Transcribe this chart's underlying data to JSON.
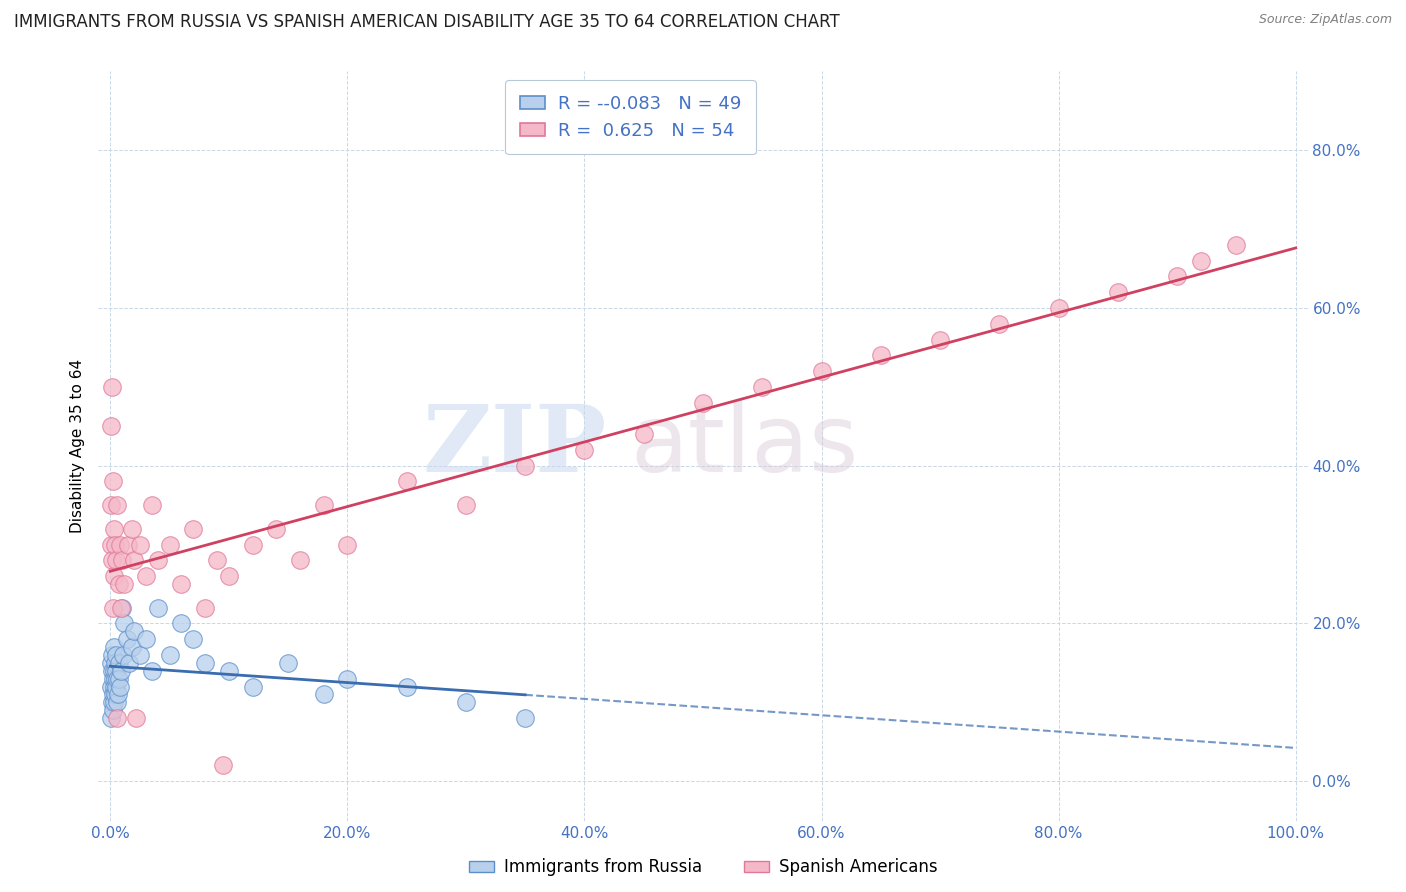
{
  "title": "IMMIGRANTS FROM RUSSIA VS SPANISH AMERICAN DISABILITY AGE 35 TO 64 CORRELATION CHART",
  "source": "Source: ZipAtlas.com",
  "ylabel": "Disability Age 35 to 64",
  "watermark_zip": "ZIP",
  "watermark_atlas": "atlas",
  "legend_r1": "-0.083",
  "legend_n1": "49",
  "legend_r2": "0.625",
  "legend_n2": "54",
  "blue_scatter_face": "#b8d0eb",
  "blue_scatter_edge": "#5b8fcc",
  "pink_scatter_face": "#f5b8c8",
  "pink_scatter_edge": "#e07898",
  "blue_line_color": "#3a6cb0",
  "pink_line_color": "#d04060",
  "grid_color": "#c8d8e8",
  "background": "#ffffff",
  "tick_color": "#4472c4",
  "title_color": "#222222",
  "russia_x": [
    0.05,
    0.08,
    0.1,
    0.12,
    0.15,
    0.18,
    0.2,
    0.22,
    0.25,
    0.28,
    0.3,
    0.32,
    0.35,
    0.38,
    0.4,
    0.42,
    0.45,
    0.48,
    0.5,
    0.55,
    0.6,
    0.65,
    0.7,
    0.75,
    0.8,
    0.9,
    1.0,
    1.1,
    1.2,
    1.4,
    1.6,
    1.8,
    2.0,
    2.5,
    3.0,
    3.5,
    4.0,
    5.0,
    6.0,
    7.0,
    8.0,
    10.0,
    12.0,
    15.0,
    18.0,
    20.0,
    25.0,
    30.0,
    35.0
  ],
  "russia_y": [
    12.0,
    15.0,
    8.0,
    14.0,
    10.0,
    16.0,
    13.0,
    11.0,
    9.0,
    17.0,
    12.0,
    14.0,
    10.0,
    15.0,
    13.0,
    11.0,
    16.0,
    12.0,
    14.0,
    10.0,
    13.0,
    11.0,
    15.0,
    13.0,
    12.0,
    14.0,
    22.0,
    16.0,
    20.0,
    18.0,
    15.0,
    17.0,
    19.0,
    16.0,
    18.0,
    14.0,
    22.0,
    16.0,
    20.0,
    18.0,
    15.0,
    14.0,
    12.0,
    15.0,
    11.0,
    13.0,
    12.0,
    10.0,
    8.0
  ],
  "spanish_x": [
    0.05,
    0.08,
    0.1,
    0.15,
    0.2,
    0.25,
    0.3,
    0.35,
    0.4,
    0.5,
    0.6,
    0.7,
    0.8,
    0.9,
    1.0,
    1.2,
    1.5,
    1.8,
    2.0,
    2.5,
    3.0,
    3.5,
    4.0,
    5.0,
    6.0,
    7.0,
    8.0,
    9.0,
    10.0,
    12.0,
    14.0,
    16.0,
    18.0,
    20.0,
    25.0,
    30.0,
    35.0,
    40.0,
    45.0,
    50.0,
    55.0,
    60.0,
    65.0,
    70.0,
    75.0,
    80.0,
    85.0,
    90.0,
    92.0,
    95.0,
    0.18,
    0.55,
    2.2,
    9.5
  ],
  "spanish_y": [
    45.0,
    30.0,
    35.0,
    28.0,
    22.0,
    38.0,
    32.0,
    26.0,
    30.0,
    28.0,
    35.0,
    25.0,
    30.0,
    22.0,
    28.0,
    25.0,
    30.0,
    32.0,
    28.0,
    30.0,
    26.0,
    35.0,
    28.0,
    30.0,
    25.0,
    32.0,
    22.0,
    28.0,
    26.0,
    30.0,
    32.0,
    28.0,
    35.0,
    30.0,
    38.0,
    35.0,
    40.0,
    42.0,
    44.0,
    48.0,
    50.0,
    52.0,
    54.0,
    56.0,
    58.0,
    60.0,
    62.0,
    64.0,
    66.0,
    68.0,
    50.0,
    8.0,
    8.0,
    2.0
  ],
  "yticks": [
    0,
    20,
    40,
    60,
    80
  ],
  "ytick_labels": [
    "0.0%",
    "20.0%",
    "40.0%",
    "60.0%",
    "80.0%"
  ],
  "xticks": [
    0,
    20,
    40,
    60,
    80,
    100
  ],
  "xtick_labels": [
    "0.0%",
    "20.0%",
    "40.0%",
    "60.0%",
    "80.0%",
    "100.0%"
  ],
  "xlim": [
    -1,
    101
  ],
  "ylim": [
    -5,
    90
  ]
}
